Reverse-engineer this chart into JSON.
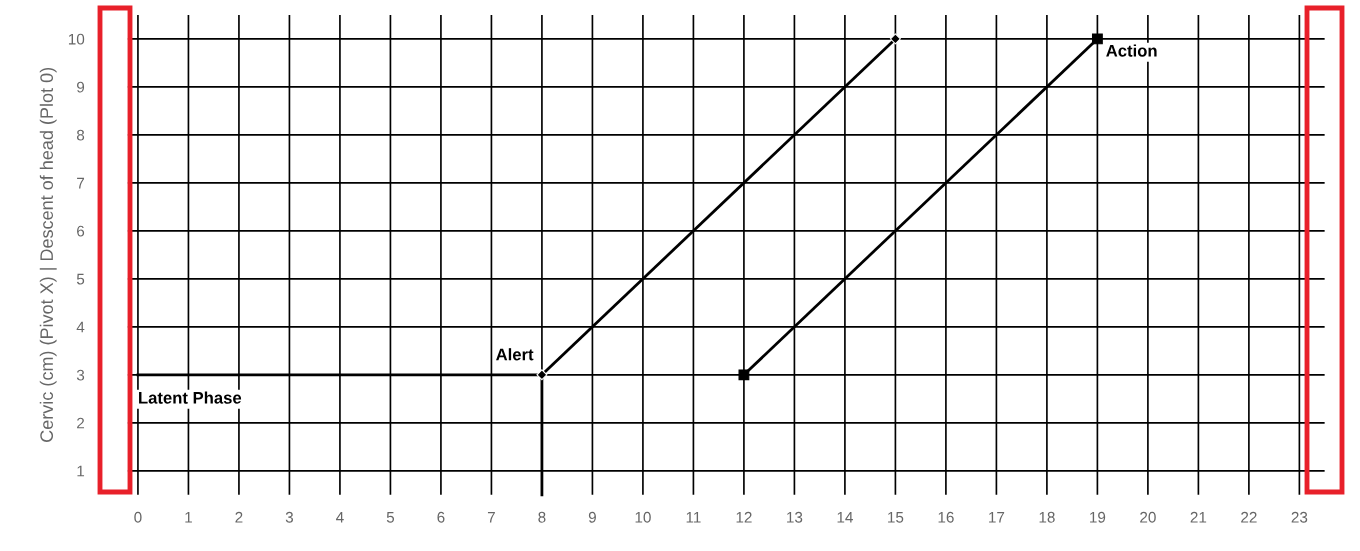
{
  "chart_data": {
    "type": "line",
    "ylabel": "Cervic (cm) (Pivot X) | Descent of head (Plot 0)",
    "xlim": [
      -0.2,
      23.5
    ],
    "xticks": [
      0,
      1,
      2,
      3,
      4,
      5,
      6,
      7,
      8,
      9,
      10,
      11,
      12,
      13,
      14,
      15,
      16,
      17,
      18,
      19,
      20,
      21,
      22,
      23
    ],
    "ylim": [
      0.5,
      10.5
    ],
    "yticks": [
      1,
      2,
      3,
      4,
      5,
      6,
      7,
      8,
      9,
      10
    ],
    "grid": true,
    "legend": false,
    "line_style": "solid",
    "series": [
      {
        "name": "Latent Phase",
        "color": "#000000",
        "marker": "none",
        "x": [
          0,
          8,
          8
        ],
        "values": [
          3,
          3,
          0.5
        ]
      },
      {
        "name": "Alert",
        "color": "#000000",
        "marker": "diamond",
        "x": [
          8,
          15
        ],
        "values": [
          3,
          10
        ]
      },
      {
        "name": "Action",
        "color": "#000000",
        "marker": "square",
        "x": [
          12,
          19
        ],
        "values": [
          3,
          10
        ]
      }
    ]
  }
}
